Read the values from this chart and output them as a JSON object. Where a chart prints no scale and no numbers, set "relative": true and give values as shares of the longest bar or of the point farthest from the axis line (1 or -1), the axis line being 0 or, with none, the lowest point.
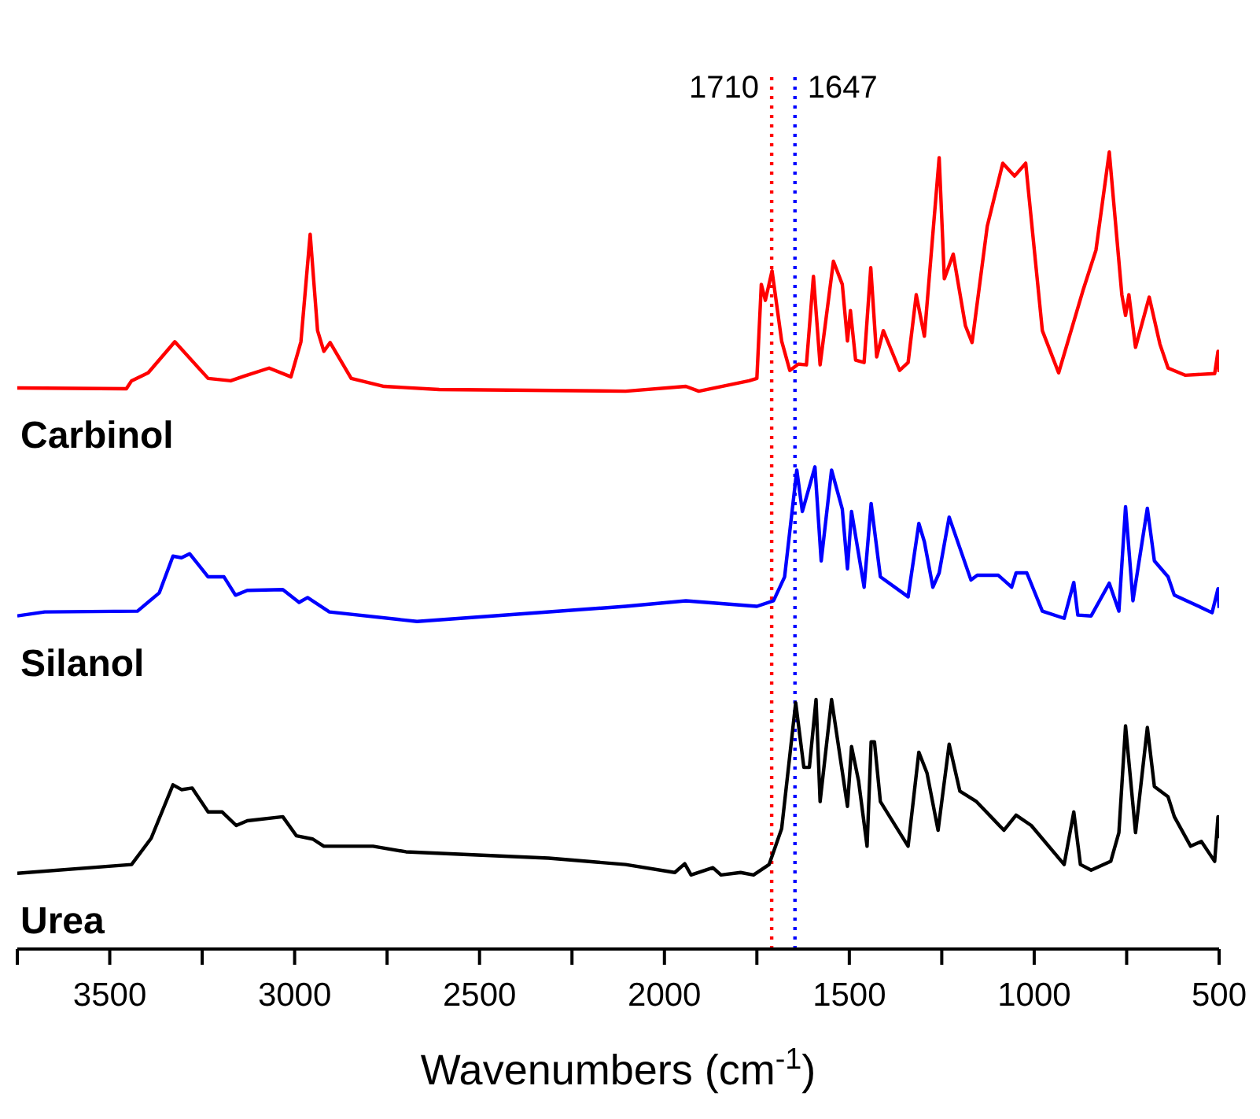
{
  "chart_data": {
    "type": "line",
    "relative": true,
    "xlabel": "Wavenumbers (cm$^{-1}$)",
    "xlim": [
      3750,
      500
    ],
    "xticks": [
      {
        "value": 3750,
        "label": null
      },
      3500,
      {
        "value": 3250,
        "label": null
      },
      3000,
      {
        "value": 2750,
        "label": null
      },
      2500,
      {
        "value": 2250,
        "label": null
      },
      2000,
      {
        "value": 1750,
        "label": null
      },
      1500,
      {
        "value": 1250,
        "label": null
      },
      1000,
      {
        "value": 750,
        "label": null
      },
      500
    ],
    "grid": false,
    "legend": false,
    "ref_lines": [
      {
        "axis": "x",
        "value": 1710,
        "label": "1710",
        "color": "#ff0000",
        "line_style": "dotted"
      },
      {
        "axis": "x",
        "value": 1647,
        "label": "1647",
        "color": "#0000ff",
        "line_style": "dotted"
      }
    ],
    "series": [
      {
        "name": "Carbinol",
        "color": "#ff0000",
        "x": [
          3750,
          3455,
          3441,
          3396,
          3324,
          3234,
          3173,
          3136,
          3069,
          3010,
          2983,
          2958,
          2938,
          2921,
          2904,
          2847,
          2758,
          2609,
          2105,
          1942,
          1907,
          1771,
          1750,
          1738,
          1727,
          1709,
          1683,
          1661,
          1638,
          1616,
          1597,
          1579,
          1543,
          1519,
          1505,
          1497,
          1483,
          1460,
          1442,
          1426,
          1408,
          1364,
          1341,
          1319,
          1297,
          1257,
          1243,
          1219,
          1186,
          1168,
          1127,
          1085,
          1053,
          1023,
          978,
          934,
          867,
          833,
          797,
          763,
          753,
          744,
          726,
          689,
          660,
          638,
          592,
          512,
          503,
          500
        ],
        "values": [
          0.704,
          0.703,
          0.713,
          0.723,
          0.762,
          0.716,
          0.713,
          0.719,
          0.729,
          0.718,
          0.762,
          0.897,
          0.776,
          0.75,
          0.761,
          0.716,
          0.706,
          0.702,
          0.7,
          0.706,
          0.7,
          0.713,
          0.716,
          0.834,
          0.814,
          0.851,
          0.763,
          0.726,
          0.734,
          0.733,
          0.844,
          0.733,
          0.863,
          0.834,
          0.763,
          0.801,
          0.739,
          0.736,
          0.855,
          0.743,
          0.776,
          0.726,
          0.736,
          0.821,
          0.769,
          0.993,
          0.841,
          0.872,
          0.782,
          0.761,
          0.907,
          0.986,
          0.97,
          0.986,
          0.776,
          0.723,
          0.828,
          0.877,
          1.0,
          0.821,
          0.795,
          0.821,
          0.755,
          0.818,
          0.759,
          0.729,
          0.72,
          0.722,
          0.75,
          0.724
        ]
      },
      {
        "name": "Silanol",
        "color": "#0000ff",
        "x": [
          3750,
          3676,
          3425,
          3366,
          3329,
          3306,
          3284,
          3234,
          3191,
          3160,
          3128,
          3032,
          2988,
          2965,
          2906,
          2669,
          2105,
          1942,
          1750,
          1705,
          1675,
          1642,
          1627,
          1593,
          1576,
          1548,
          1519,
          1505,
          1494,
          1460,
          1441,
          1416,
          1341,
          1312,
          1297,
          1274,
          1257,
          1230,
          1171,
          1154,
          1097,
          1061,
          1049,
          1020,
          978,
          919,
          893,
          882,
          846,
          797,
          771,
          753,
          733,
          694,
          675,
          638,
          621,
          555,
          519,
          503,
          500
        ],
        "values": [
          0.418,
          0.423,
          0.424,
          0.447,
          0.493,
          0.491,
          0.496,
          0.467,
          0.467,
          0.444,
          0.45,
          0.451,
          0.435,
          0.441,
          0.423,
          0.411,
          0.43,
          0.437,
          0.43,
          0.437,
          0.467,
          0.601,
          0.549,
          0.605,
          0.487,
          0.601,
          0.552,
          0.477,
          0.549,
          0.454,
          0.559,
          0.467,
          0.442,
          0.534,
          0.511,
          0.454,
          0.472,
          0.542,
          0.463,
          0.469,
          0.469,
          0.454,
          0.472,
          0.472,
          0.424,
          0.415,
          0.46,
          0.419,
          0.418,
          0.459,
          0.424,
          0.555,
          0.437,
          0.553,
          0.487,
          0.467,
          0.444,
          0.43,
          0.422,
          0.452,
          0.428
        ]
      },
      {
        "name": "Urea",
        "color": "#000000",
        "x": [
          3750,
          3441,
          3388,
          3329,
          3306,
          3277,
          3234,
          3196,
          3158,
          3128,
          3032,
          2995,
          2951,
          2921,
          2788,
          2699,
          2313,
          2105,
          1972,
          1945,
          1928,
          1869,
          1847,
          1794,
          1759,
          1717,
          1683,
          1645,
          1623,
          1608,
          1590,
          1579,
          1548,
          1505,
          1494,
          1475,
          1452,
          1441,
          1432,
          1416,
          1341,
          1312,
          1290,
          1260,
          1230,
          1201,
          1156,
          1082,
          1049,
          1008,
          919,
          893,
          875,
          846,
          793,
          771,
          753,
          726,
          694,
          675,
          638,
          621,
          577,
          548,
          512,
          503,
          500
        ],
        "values": [
          0.095,
          0.106,
          0.139,
          0.206,
          0.2,
          0.202,
          0.172,
          0.172,
          0.155,
          0.161,
          0.166,
          0.142,
          0.138,
          0.129,
          0.129,
          0.122,
          0.114,
          0.106,
          0.096,
          0.107,
          0.093,
          0.102,
          0.093,
          0.096,
          0.093,
          0.106,
          0.151,
          0.309,
          0.228,
          0.228,
          0.313,
          0.185,
          0.313,
          0.179,
          0.254,
          0.211,
          0.129,
          0.26,
          0.26,
          0.185,
          0.129,
          0.247,
          0.221,
          0.149,
          0.257,
          0.198,
          0.185,
          0.149,
          0.168,
          0.155,
          0.106,
          0.172,
          0.106,
          0.099,
          0.11,
          0.146,
          0.28,
          0.146,
          0.278,
          0.204,
          0.191,
          0.166,
          0.129,
          0.135,
          0.11,
          0.166,
          0.139
        ]
      }
    ]
  }
}
